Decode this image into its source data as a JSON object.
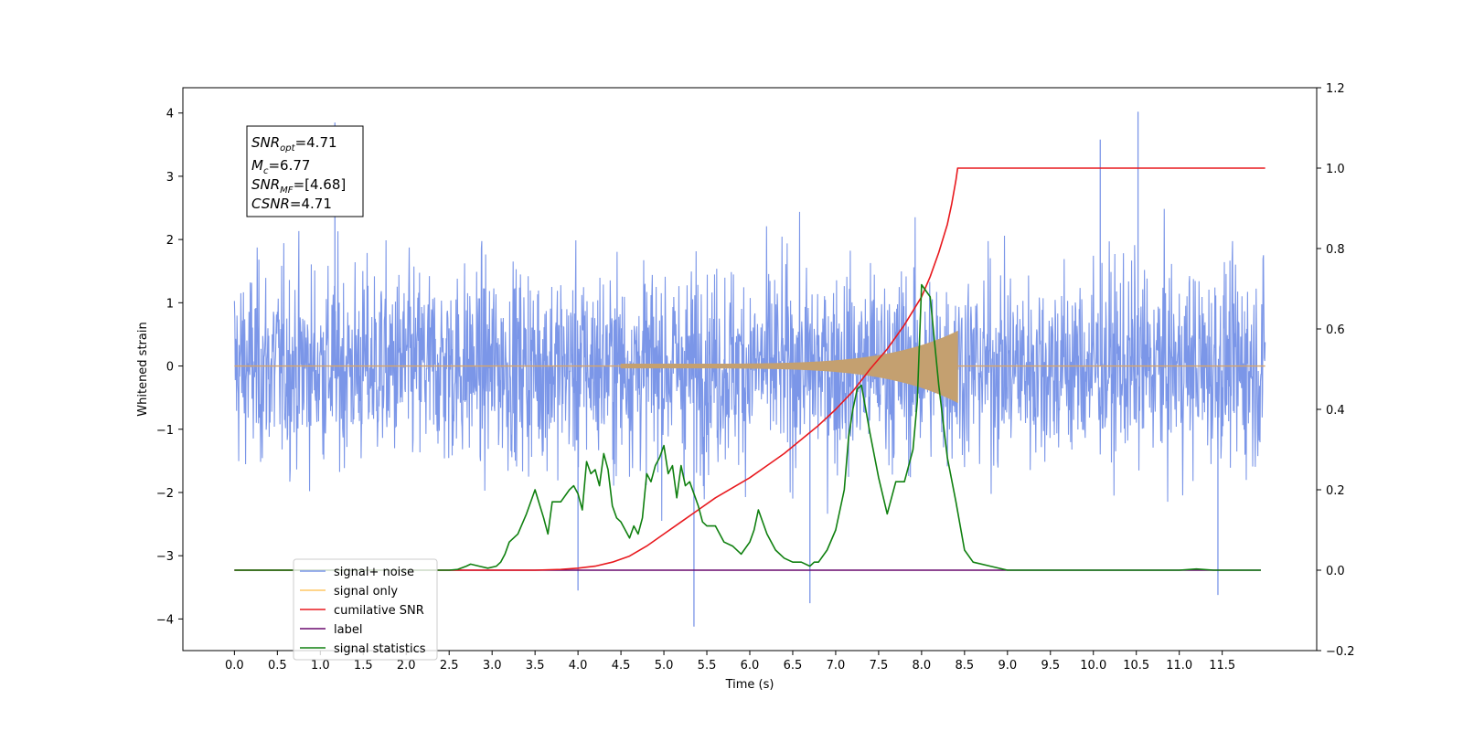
{
  "chart_data": {
    "type": "line",
    "title": "",
    "xlabel": "Time (s)",
    "ylabel": "Whitened strain",
    "y2label": "",
    "xlim": [
      -0.6,
      12.6
    ],
    "ylim": [
      -4.5,
      4.4
    ],
    "y2lim": [
      -0.2,
      1.2
    ],
    "x_ticks": [
      0.0,
      0.5,
      1.0,
      1.5,
      2.0,
      2.5,
      3.0,
      3.5,
      4.0,
      4.5,
      5.0,
      5.5,
      6.0,
      6.5,
      7.0,
      7.5,
      8.0,
      8.5,
      9.0,
      9.5,
      10.0,
      10.5,
      11.0,
      11.5
    ],
    "x_tick_labels": [
      "0.0",
      "0.5",
      "1.0",
      "1.5",
      "2.0",
      "2.5",
      "3.0",
      "3.5",
      "4.0",
      "4.5",
      "5.0",
      "5.5",
      "6.0",
      "6.5",
      "7.0",
      "7.5",
      "8.0",
      "8.5",
      "9.0",
      "9.5",
      "10.0",
      "10.5",
      "11.0",
      "11.5"
    ],
    "y_ticks": [
      -4,
      -3,
      -2,
      -1,
      0,
      1,
      2,
      3,
      4
    ],
    "y_tick_labels": [
      "−4",
      "−3",
      "−2",
      "−1",
      "0",
      "1",
      "2",
      "3",
      "4"
    ],
    "y2_ticks": [
      -0.2,
      0.0,
      0.2,
      0.4,
      0.6,
      0.8,
      1.0,
      1.2
    ],
    "y2_tick_labels": [
      "−0.2",
      "0.0",
      "0.2",
      "0.4",
      "0.6",
      "0.8",
      "1.0",
      "1.2"
    ],
    "annotation": {
      "lines": [
        {
          "sym": "SNR",
          "sub": "opt",
          "value": "=4.71"
        },
        {
          "sym": "M",
          "sub": "c",
          "value": "=6.77"
        },
        {
          "sym": "SNR",
          "sub": "MF",
          "value": "=[4.68]"
        },
        {
          "sym": "CSNR",
          "sub": "",
          "value": "=4.71"
        }
      ]
    },
    "legend": {
      "placement": "lower-left",
      "entries": [
        {
          "label": "signal+ noise",
          "color": "#7b96e8"
        },
        {
          "label": "signal only",
          "color": "#ffc765"
        },
        {
          "label": "cumilative SNR",
          "color": "#e8191e"
        },
        {
          "label": "label",
          "color": "#6a0a6e"
        },
        {
          "label": "signal statistics",
          "color": "#108010"
        }
      ]
    },
    "series": [
      {
        "name": "signal+ noise",
        "axis": "left",
        "style": "noise_band",
        "color": "#7b96e8",
        "x_range": [
          0.0,
          12.0
        ],
        "typical_range": [
          -1.6,
          1.5
        ],
        "max": 4.02,
        "min": -4.12,
        "notable_peaks": [
          {
            "x": 1.17,
            "y": 3.85
          },
          {
            "x": 10.52,
            "y": 4.02
          },
          {
            "x": 10.08,
            "y": 3.58
          },
          {
            "x": 5.35,
            "y": -4.12
          },
          {
            "x": 11.45,
            "y": -3.62
          },
          {
            "x": 6.7,
            "y": -3.75
          },
          {
            "x": 4.0,
            "y": -3.55
          }
        ]
      },
      {
        "name": "signal only",
        "axis": "left",
        "style": "chirp",
        "color": "#c4a070",
        "x_range": [
          0.0,
          12.0
        ],
        "chirp_start": 4.5,
        "merger_time": 8.42,
        "peak_amplitude": 0.55
      },
      {
        "name": "cumilative SNR",
        "axis": "right",
        "color": "#e8191e",
        "x": [
          0.0,
          3.0,
          3.5,
          3.8,
          4.0,
          4.2,
          4.4,
          4.6,
          4.8,
          5.0,
          5.2,
          5.4,
          5.6,
          5.8,
          6.0,
          6.2,
          6.4,
          6.6,
          6.8,
          7.0,
          7.2,
          7.4,
          7.6,
          7.8,
          8.0,
          8.1,
          8.2,
          8.3,
          8.35,
          8.4,
          8.42,
          12.0
        ],
        "values": [
          0.0,
          0.0,
          0.0,
          0.002,
          0.005,
          0.01,
          0.02,
          0.035,
          0.06,
          0.09,
          0.12,
          0.15,
          0.18,
          0.205,
          0.23,
          0.26,
          0.29,
          0.325,
          0.36,
          0.4,
          0.445,
          0.5,
          0.55,
          0.61,
          0.68,
          0.73,
          0.79,
          0.86,
          0.91,
          0.97,
          1.0,
          1.0
        ]
      },
      {
        "name": "label",
        "axis": "right",
        "color": "#6a0a6e",
        "x": [
          0.0,
          3.0,
          8.42,
          11.95
        ],
        "values": [
          0.0,
          0.0,
          0.0,
          0.0
        ]
      },
      {
        "name": "signal statistics",
        "axis": "right",
        "color": "#108010",
        "x": [
          0.0,
          2.5,
          2.6,
          2.7,
          2.75,
          2.85,
          2.95,
          3.05,
          3.1,
          3.15,
          3.2,
          3.3,
          3.4,
          3.5,
          3.6,
          3.65,
          3.7,
          3.8,
          3.9,
          3.95,
          4.0,
          4.05,
          4.1,
          4.15,
          4.2,
          4.25,
          4.3,
          4.35,
          4.4,
          4.45,
          4.5,
          4.6,
          4.65,
          4.7,
          4.75,
          4.8,
          4.85,
          4.9,
          4.95,
          5.0,
          5.05,
          5.1,
          5.15,
          5.2,
          5.25,
          5.3,
          5.4,
          5.45,
          5.5,
          5.6,
          5.7,
          5.8,
          5.9,
          6.0,
          6.05,
          6.1,
          6.2,
          6.3,
          6.4,
          6.5,
          6.6,
          6.7,
          6.75,
          6.8,
          6.9,
          7.0,
          7.1,
          7.15,
          7.2,
          7.25,
          7.3,
          7.4,
          7.5,
          7.6,
          7.7,
          7.8,
          7.9,
          7.95,
          8.0,
          8.1,
          8.2,
          8.3,
          8.4,
          8.5,
          8.6,
          8.8,
          9.0,
          11.0,
          11.2,
          11.4,
          11.95
        ],
        "values": [
          0.0,
          0.0,
          0.002,
          0.01,
          0.015,
          0.01,
          0.005,
          0.01,
          0.02,
          0.04,
          0.07,
          0.09,
          0.14,
          0.2,
          0.13,
          0.09,
          0.17,
          0.17,
          0.2,
          0.21,
          0.19,
          0.15,
          0.27,
          0.24,
          0.25,
          0.21,
          0.29,
          0.25,
          0.16,
          0.13,
          0.12,
          0.08,
          0.11,
          0.09,
          0.13,
          0.24,
          0.22,
          0.26,
          0.28,
          0.31,
          0.24,
          0.26,
          0.18,
          0.26,
          0.21,
          0.22,
          0.16,
          0.12,
          0.11,
          0.11,
          0.07,
          0.06,
          0.04,
          0.07,
          0.1,
          0.15,
          0.09,
          0.05,
          0.03,
          0.02,
          0.02,
          0.01,
          0.02,
          0.02,
          0.05,
          0.1,
          0.2,
          0.33,
          0.4,
          0.45,
          0.46,
          0.34,
          0.23,
          0.14,
          0.22,
          0.22,
          0.3,
          0.42,
          0.71,
          0.68,
          0.46,
          0.28,
          0.17,
          0.05,
          0.02,
          0.01,
          0.0,
          0.0,
          0.003,
          0.0,
          0.0
        ]
      }
    ]
  }
}
